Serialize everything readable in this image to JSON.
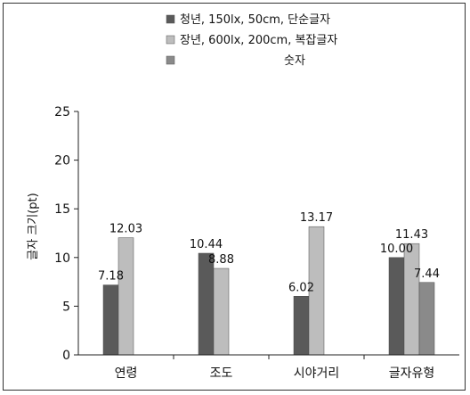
{
  "chart_data": {
    "type": "bar",
    "title": "",
    "xlabel": "",
    "ylabel": "글자 크기(pt)",
    "ylim": [
      0,
      25
    ],
    "yticks": [
      0,
      5,
      10,
      15,
      20,
      25
    ],
    "grid": false,
    "legend_position": "top",
    "categories": [
      "연령",
      "조도",
      "시야거리",
      "글자유형"
    ],
    "series": [
      {
        "name": "청년, 150lx,   50cm, 단순글자",
        "color": "#5a5a5a",
        "values": [
          7.18,
          10.44,
          6.02,
          10.0
        ],
        "labels": [
          "7.18",
          "10.44",
          "6.02",
          "10.00"
        ]
      },
      {
        "name": "장년, 600lx, 200cm, 복잡글자",
        "color": "#bdbdbd",
        "values": [
          12.03,
          8.88,
          13.17,
          11.43
        ],
        "labels": [
          "12.03",
          "8.88",
          "13.17",
          "11.43"
        ]
      },
      {
        "name": "숫자",
        "color": "#8a8a8a",
        "values": [
          null,
          null,
          null,
          7.44
        ],
        "labels": [
          null,
          null,
          null,
          "7.44"
        ]
      }
    ]
  }
}
